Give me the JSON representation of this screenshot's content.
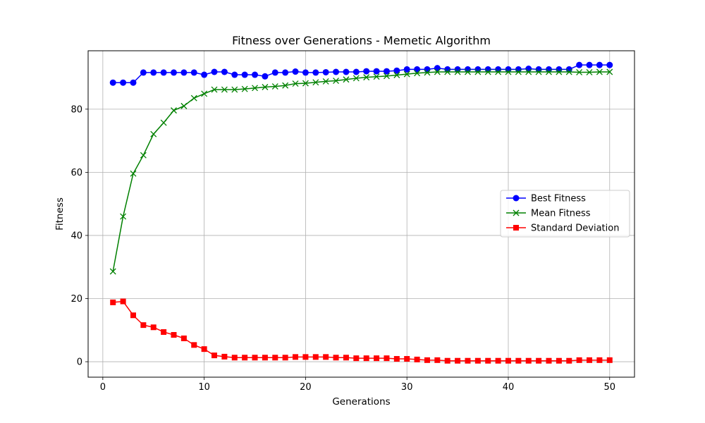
{
  "chart_data": {
    "type": "line",
    "title": "Fitness over Generations - Memetic Algorithm",
    "xlabel": "Generations",
    "ylabel": "Fitness",
    "xlim": [
      -1.45,
      52.45
    ],
    "ylim": [
      -4.9,
      98.5
    ],
    "xticks": [
      0,
      10,
      20,
      30,
      40,
      50
    ],
    "yticks": [
      0,
      20,
      40,
      60,
      80
    ],
    "grid": true,
    "legend_position": "center-right",
    "x": [
      1,
      2,
      3,
      4,
      5,
      6,
      7,
      8,
      9,
      10,
      11,
      12,
      13,
      14,
      15,
      16,
      17,
      18,
      19,
      20,
      21,
      22,
      23,
      24,
      25,
      26,
      27,
      28,
      29,
      30,
      31,
      32,
      33,
      34,
      35,
      36,
      37,
      38,
      39,
      40,
      41,
      42,
      43,
      44,
      45,
      46,
      47,
      48,
      49,
      50
    ],
    "series": [
      {
        "name": "Best Fitness",
        "color": "#0000ff",
        "marker": "circle",
        "values": [
          88.4,
          88.4,
          88.4,
          91.6,
          91.6,
          91.6,
          91.6,
          91.6,
          91.6,
          90.9,
          91.8,
          91.8,
          90.9,
          90.9,
          90.9,
          90.4,
          91.6,
          91.6,
          91.9,
          91.6,
          91.6,
          91.7,
          91.8,
          91.8,
          91.8,
          92.0,
          92.0,
          92.0,
          92.2,
          92.6,
          92.6,
          92.6,
          93.0,
          92.6,
          92.6,
          92.6,
          92.6,
          92.6,
          92.6,
          92.6,
          92.6,
          92.8,
          92.6,
          92.6,
          92.6,
          92.6,
          94.0,
          94.0,
          94.0,
          94.0
        ]
      },
      {
        "name": "Mean Fitness",
        "color": "#008000",
        "marker": "x",
        "values": [
          28.6,
          46.0,
          59.6,
          65.4,
          72.1,
          75.7,
          79.6,
          81.0,
          83.5,
          84.9,
          86.2,
          86.2,
          86.2,
          86.4,
          86.7,
          87.0,
          87.2,
          87.5,
          88.1,
          88.2,
          88.5,
          88.8,
          89.0,
          89.4,
          89.8,
          90.1,
          90.3,
          90.5,
          90.8,
          91.1,
          91.4,
          91.6,
          91.8,
          91.8,
          91.8,
          91.8,
          91.8,
          91.8,
          91.8,
          91.8,
          91.8,
          91.8,
          91.8,
          91.8,
          91.8,
          91.8,
          91.7,
          91.7,
          91.8,
          91.8
        ]
      },
      {
        "name": "Standard Deviation",
        "color": "#ff0000",
        "marker": "square",
        "values": [
          18.8,
          19.1,
          14.7,
          11.6,
          10.9,
          9.4,
          8.5,
          7.4,
          5.3,
          4.0,
          2.0,
          1.6,
          1.3,
          1.3,
          1.3,
          1.3,
          1.3,
          1.3,
          1.5,
          1.5,
          1.5,
          1.5,
          1.3,
          1.3,
          1.1,
          1.1,
          1.1,
          1.1,
          0.9,
          0.9,
          0.7,
          0.5,
          0.5,
          0.3,
          0.3,
          0.3,
          0.3,
          0.3,
          0.3,
          0.3,
          0.3,
          0.3,
          0.3,
          0.3,
          0.3,
          0.3,
          0.5,
          0.5,
          0.5,
          0.5
        ]
      }
    ]
  }
}
